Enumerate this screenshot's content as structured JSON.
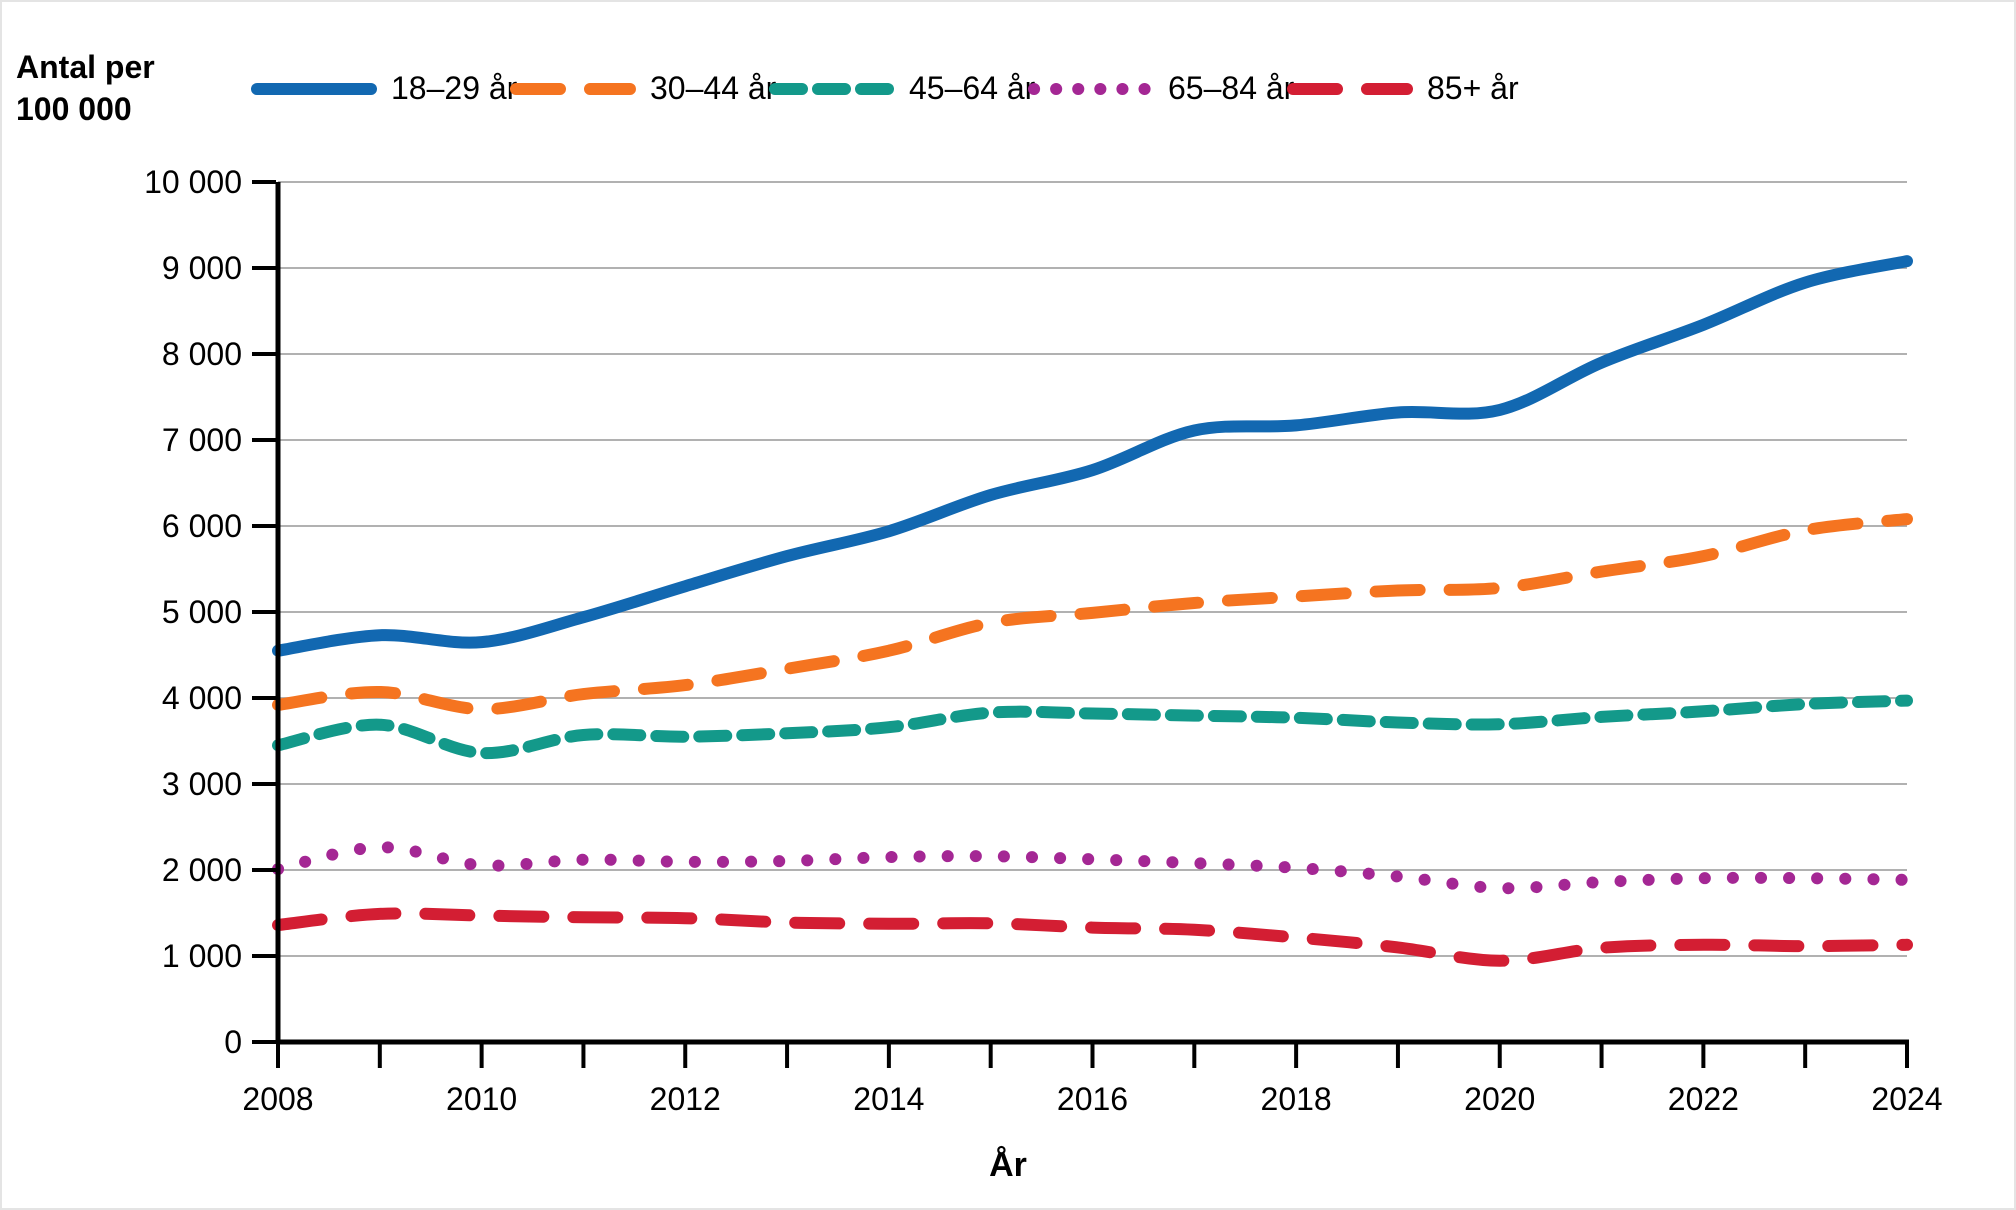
{
  "y_axis_title": "Antal per\n100 000",
  "x_axis_title": "År",
  "colors": {
    "blue": "#1268b1",
    "orange": "#f57420",
    "teal": "#13998a",
    "purple": "#a42794",
    "red": "#d31e33",
    "gridline": "#a6a6a6",
    "axis": "#000000"
  },
  "chart_data": {
    "type": "line",
    "title": "",
    "xlabel": "År",
    "ylabel": "Antal per 100 000",
    "grid": "horizontal",
    "legend_position": "top",
    "xlim": [
      2008,
      2024
    ],
    "ylim": [
      0,
      10000
    ],
    "x": [
      2008,
      2009,
      2010,
      2011,
      2012,
      2013,
      2014,
      2015,
      2016,
      2017,
      2018,
      2019,
      2020,
      2021,
      2022,
      2023,
      2024
    ],
    "x_tick_labels": [
      "2008",
      "2010",
      "2012",
      "2014",
      "2016",
      "2018",
      "2020",
      "2022",
      "2024"
    ],
    "y_ticks": [
      0,
      1000,
      2000,
      3000,
      4000,
      5000,
      6000,
      7000,
      8000,
      9000,
      10000
    ],
    "y_tick_labels": [
      "0",
      "1 000",
      "2 000",
      "3 000",
      "4 000",
      "5 000",
      "6 000",
      "7 000",
      "8 000",
      "9 000",
      "10 000"
    ],
    "series": [
      {
        "name": "18–29 år",
        "color": "#1268b1",
        "dash": "solid",
        "values": [
          4550,
          4730,
          4650,
          4940,
          5300,
          5650,
          5940,
          6360,
          6650,
          7110,
          7170,
          7320,
          7350,
          7900,
          8340,
          8830,
          9080
        ]
      },
      {
        "name": "30–44 år",
        "color": "#f57420",
        "dash": "long-dash",
        "values": [
          3920,
          4070,
          3870,
          4045,
          4150,
          4340,
          4550,
          4875,
          4990,
          5105,
          5180,
          5250,
          5280,
          5470,
          5650,
          5950,
          6080
        ]
      },
      {
        "name": "45–64 år",
        "color": "#13998a",
        "dash": "dash",
        "values": [
          3450,
          3690,
          3360,
          3570,
          3550,
          3590,
          3660,
          3830,
          3820,
          3795,
          3770,
          3715,
          3695,
          3780,
          3845,
          3930,
          3970
        ]
      },
      {
        "name": "65–84 år",
        "color": "#a42794",
        "dash": "dot",
        "values": [
          2010,
          2265,
          2055,
          2120,
          2095,
          2105,
          2150,
          2160,
          2125,
          2080,
          2025,
          1925,
          1790,
          1860,
          1905,
          1905,
          1885
        ]
      },
      {
        "name": "85+ år",
        "color": "#d31e33",
        "dash": "long-dash",
        "values": [
          1360,
          1490,
          1470,
          1450,
          1440,
          1390,
          1375,
          1380,
          1330,
          1305,
          1215,
          1100,
          945,
          1095,
          1130,
          1115,
          1130
        ]
      }
    ]
  }
}
